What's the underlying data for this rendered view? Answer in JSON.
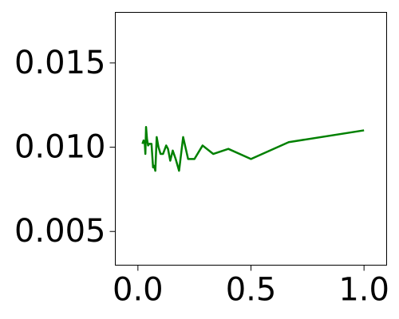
{
  "chart_data": {
    "type": "line",
    "title": "",
    "xlabel": "",
    "ylabel": "",
    "xlim": [
      -0.1,
      1.1
    ],
    "ylim": [
      0.003,
      0.018
    ],
    "grid": false,
    "x_ticks": [
      0.0,
      0.5,
      1.0
    ],
    "x_tick_labels": [
      "0.0",
      "0.5",
      "1.0"
    ],
    "y_ticks": [
      0.005,
      0.01,
      0.015
    ],
    "y_tick_labels": [
      "0.005",
      "0.010",
      "0.015"
    ],
    "series": [
      {
        "color": "#008000",
        "x": [
          0.02,
          0.025,
          0.03,
          0.033,
          0.036,
          0.04,
          0.045,
          0.05,
          0.06,
          0.067,
          0.071,
          0.077,
          0.083,
          0.091,
          0.1,
          0.111,
          0.125,
          0.133,
          0.143,
          0.154,
          0.167,
          0.182,
          0.2,
          0.222,
          0.25,
          0.286,
          0.333,
          0.4,
          0.5,
          0.667,
          1.0
        ],
        "y": [
          0.0102,
          0.0104,
          0.0103,
          0.0096,
          0.0112,
          0.0105,
          0.0101,
          0.0102,
          0.0102,
          0.0088,
          0.0089,
          0.0086,
          0.0106,
          0.01,
          0.0096,
          0.0096,
          0.0101,
          0.0099,
          0.0092,
          0.0098,
          0.0093,
          0.0086,
          0.0106,
          0.0093,
          0.0093,
          0.0101,
          0.0096,
          0.0099,
          0.0093,
          0.0103,
          0.011
        ]
      }
    ]
  }
}
